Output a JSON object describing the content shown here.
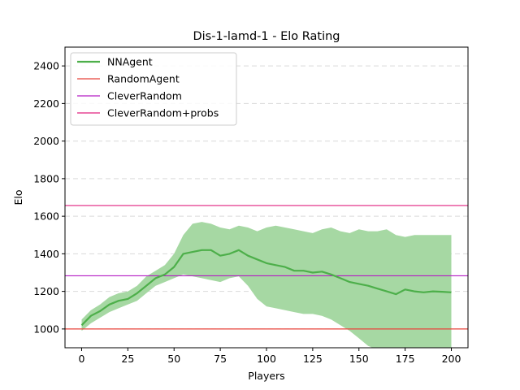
{
  "chart_data": {
    "type": "line",
    "title": "Dis-1-lamd-1 - Elo Rating",
    "xlabel": "Players",
    "ylabel": "Elo",
    "xlim": [
      -9,
      209
    ],
    "ylim": [
      900,
      2500
    ],
    "x_ticks": [
      0,
      25,
      50,
      75,
      100,
      125,
      150,
      175,
      200
    ],
    "y_ticks": [
      1000,
      1200,
      1400,
      1600,
      1800,
      2000,
      2200,
      2400
    ],
    "grid": "horizontal dashed",
    "legend_position": "top-left",
    "series": [
      {
        "name": "NNAgent",
        "color": "#4daf4a",
        "band_color": "#a6d8a3",
        "x": [
          0,
          5,
          10,
          15,
          20,
          25,
          30,
          35,
          40,
          45,
          50,
          55,
          60,
          65,
          70,
          75,
          80,
          85,
          90,
          95,
          100,
          105,
          110,
          115,
          120,
          125,
          130,
          135,
          140,
          145,
          150,
          155,
          160,
          165,
          170,
          175,
          180,
          185,
          190,
          195,
          200
        ],
        "values": [
          1020,
          1070,
          1095,
          1130,
          1150,
          1160,
          1190,
          1230,
          1270,
          1290,
          1330,
          1400,
          1410,
          1420,
          1420,
          1390,
          1400,
          1420,
          1390,
          1370,
          1350,
          1340,
          1330,
          1310,
          1310,
          1300,
          1305,
          1290,
          1270,
          1250,
          1240,
          1230,
          1215,
          1200,
          1185,
          1210,
          1200,
          1195,
          1200,
          1198,
          1195
        ],
        "lower": [
          990,
          1030,
          1060,
          1090,
          1110,
          1130,
          1150,
          1190,
          1230,
          1250,
          1270,
          1290,
          1280,
          1270,
          1260,
          1250,
          1270,
          1280,
          1230,
          1160,
          1120,
          1110,
          1100,
          1090,
          1080,
          1080,
          1070,
          1050,
          1020,
          990,
          950,
          910,
          890,
          880,
          870,
          860,
          860,
          860,
          860,
          860,
          860
        ],
        "upper": [
          1050,
          1100,
          1130,
          1170,
          1190,
          1200,
          1230,
          1280,
          1310,
          1340,
          1400,
          1500,
          1560,
          1570,
          1560,
          1540,
          1530,
          1550,
          1540,
          1520,
          1540,
          1550,
          1540,
          1530,
          1520,
          1510,
          1530,
          1540,
          1520,
          1510,
          1530,
          1520,
          1520,
          1530,
          1500,
          1490,
          1500,
          1500,
          1500,
          1500,
          1500
        ]
      },
      {
        "name": "RandomAgent",
        "color": "#e8453c",
        "hline": 1000
      },
      {
        "name": "CleverRandom",
        "color": "#b41cc4",
        "hline": 1283
      },
      {
        "name": "CleverRandom+probs",
        "color": "#e0207f",
        "hline": 1657
      }
    ]
  }
}
